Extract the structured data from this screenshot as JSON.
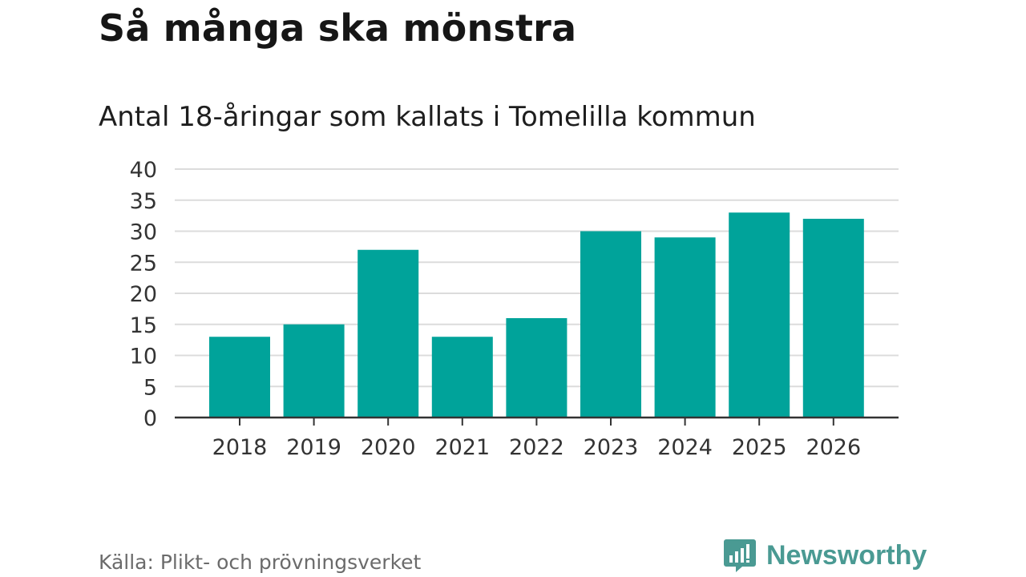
{
  "title": "Så många ska mönstra",
  "subtitle": "Antal 18-åringar som kallats i Tomelilla kommun",
  "source": "Källa: Plikt- och prövningsverket",
  "brand": {
    "name": "Newsworthy",
    "icon": "newsworthy-logo-icon",
    "color": "#4a9a93"
  },
  "colors": {
    "bar": "#00a39a",
    "grid": "#dcdcdc",
    "axis": "#333333"
  },
  "chart_data": {
    "type": "bar",
    "categories": [
      "2018",
      "2019",
      "2020",
      "2021",
      "2022",
      "2023",
      "2024",
      "2025",
      "2026"
    ],
    "values": [
      13,
      15,
      27,
      13,
      16,
      30,
      29,
      33,
      32
    ],
    "yticks": [
      "0",
      "5",
      "10",
      "15",
      "20",
      "25",
      "30",
      "35",
      "40"
    ],
    "ylim": [
      0,
      40
    ],
    "grid": true,
    "legend": "none"
  }
}
